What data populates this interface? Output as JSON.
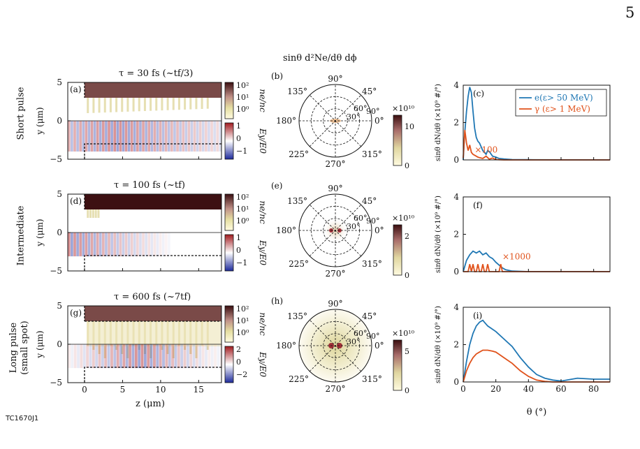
{
  "page_number": "5",
  "footer_code": "TC1670J1",
  "row_labels": [
    {
      "line1": "Short pulse",
      "line2": ""
    },
    {
      "line1": "Intermediate",
      "line2": ""
    },
    {
      "line1": "Long pulse",
      "line2": "(small spot)"
    }
  ],
  "left_column": {
    "titles": [
      "τ = 30 fs (~tf/3)",
      "τ = 100 fs (~tf)",
      "τ = 600 fs (~7tf)"
    ],
    "panel_letters": [
      "(a)",
      "(d)",
      "(g)"
    ],
    "ylabel": "y (μm)",
    "xlabel": "z (μm)",
    "y_ticks": [
      "5",
      "0",
      "−5"
    ],
    "x_ticks": [
      "0",
      "5",
      "10",
      "15"
    ],
    "density_label": "ne/nc",
    "field_label": "Ey/E0",
    "density_ticks": [
      "10²",
      "10¹",
      "10⁰"
    ],
    "field_ticks_small": [
      "1",
      "0",
      "−1"
    ],
    "field_ticks_large": [
      "2",
      "0",
      "−2"
    ]
  },
  "polar_column": {
    "header": "sinθ d²Ne/dθ dϕ",
    "panel_letters": [
      "(b)",
      "(e)",
      "(h)"
    ],
    "angle_labels": [
      "90°",
      "45°",
      "135°",
      "60°",
      "90°",
      "30°",
      "0°",
      "180°",
      "225°",
      "270°",
      "315°"
    ],
    "scale_label": "×10¹⁰",
    "colorbar_ticks": [
      [
        "10",
        "0"
      ],
      [
        "2",
        "0"
      ],
      [
        "5",
        "0"
      ]
    ]
  },
  "right_column": {
    "panel_letters": [
      "(c)",
      "(f)",
      "(i)"
    ],
    "ylabel": "sinθ dN/dθ (×10⁹ #/°)",
    "xlabel": "θ (°)",
    "y_ticks": [
      "4",
      "2",
      "0"
    ],
    "x_ticks": [
      "0",
      "20",
      "40",
      "60",
      "80"
    ],
    "legend": [
      "e(ε> 50 MeV)",
      "γ (ε> 1 MeV)"
    ],
    "multipliers": [
      "×100",
      "×1000",
      ""
    ],
    "colors": {
      "electron": "#1f77b4",
      "photon": "#e0521b"
    }
  },
  "chart_data": [
    {
      "type": "line",
      "panel": "(c)",
      "xlabel": "θ (°)",
      "ylabel": "sinθ dN/dθ (×10⁹ #/°)",
      "xlim": [
        0,
        90
      ],
      "ylim": [
        0,
        4
      ],
      "series": [
        {
          "name": "e(ε> 50 MeV)",
          "x": [
            0,
            1,
            2,
            3,
            4,
            5,
            6,
            7,
            8,
            9,
            10,
            12,
            14,
            15,
            16,
            18,
            20,
            22,
            25,
            30,
            40,
            90
          ],
          "y": [
            0,
            1.5,
            2.6,
            3.4,
            3.9,
            3.6,
            2.6,
            1.7,
            1.2,
            1.0,
            0.9,
            0.5,
            0.3,
            0.5,
            0.45,
            0.2,
            0.15,
            0.08,
            0.05,
            0.02,
            0.01,
            0.0
          ]
        },
        {
          "name": "γ (ε> 1 MeV)",
          "x": [
            0,
            1,
            2,
            3,
            4,
            5,
            6,
            7,
            8,
            9,
            10,
            12,
            14,
            16,
            18,
            20,
            22,
            25,
            30,
            90
          ],
          "y": [
            0.1,
            1.6,
            0.9,
            0.5,
            0.8,
            0.4,
            0.3,
            0.25,
            0.2,
            0.15,
            0.12,
            0.08,
            0.2,
            0.04,
            0.1,
            0.02,
            0.01,
            0.0,
            0.0,
            0.0
          ]
        }
      ]
    },
    {
      "type": "line",
      "panel": "(f)",
      "xlabel": "θ (°)",
      "ylabel": "sinθ dN/dθ (×10⁹ #/°)",
      "xlim": [
        0,
        90
      ],
      "ylim": [
        0,
        4
      ],
      "series": [
        {
          "name": "e(ε> 50 MeV)",
          "x": [
            0,
            2,
            4,
            6,
            8,
            10,
            12,
            14,
            16,
            18,
            20,
            22,
            24,
            26,
            30,
            40,
            90
          ],
          "y": [
            0,
            0.6,
            0.9,
            1.1,
            1.0,
            1.1,
            0.9,
            1.0,
            0.8,
            0.7,
            0.5,
            0.35,
            0.2,
            0.1,
            0.03,
            0.0,
            0.0
          ]
        },
        {
          "name": "γ (ε> 1 MeV)",
          "x": [
            0,
            3,
            4,
            5,
            6,
            7,
            8,
            9,
            10,
            11,
            12,
            13,
            14,
            15,
            16,
            17,
            18,
            22,
            23,
            24,
            25,
            90
          ],
          "y": [
            0,
            0,
            0.4,
            0,
            0.4,
            0,
            0,
            0.4,
            0,
            0,
            0.4,
            0,
            0,
            0.4,
            0,
            0,
            0,
            0,
            0.4,
            0,
            0,
            0
          ]
        }
      ]
    },
    {
      "type": "line",
      "panel": "(i)",
      "xlabel": "θ (°)",
      "ylabel": "sinθ dN/dθ (×10⁹ #/°)",
      "xlim": [
        0,
        90
      ],
      "ylim": [
        0,
        4
      ],
      "series": [
        {
          "name": "e(ε> 50 MeV)",
          "x": [
            0,
            2,
            4,
            6,
            8,
            10,
            12,
            13,
            15,
            20,
            25,
            30,
            35,
            40,
            45,
            50,
            55,
            60,
            70,
            80,
            90
          ],
          "y": [
            0,
            1.1,
            2.0,
            2.6,
            3.0,
            3.2,
            3.3,
            3.2,
            3.0,
            2.7,
            2.3,
            1.9,
            1.3,
            0.8,
            0.4,
            0.2,
            0.1,
            0.05,
            0.2,
            0.15,
            0.15
          ]
        },
        {
          "name": "γ (ε> 1 MeV)",
          "x": [
            0,
            2,
            4,
            6,
            8,
            10,
            12,
            15,
            18,
            20,
            25,
            30,
            35,
            40,
            45,
            50,
            55,
            60,
            70,
            90
          ],
          "y": [
            0,
            0.6,
            1.0,
            1.3,
            1.5,
            1.6,
            1.7,
            1.7,
            1.65,
            1.6,
            1.3,
            1.0,
            0.6,
            0.3,
            0.1,
            0.03,
            0.0,
            0.0,
            0.0,
            0.0
          ]
        }
      ]
    }
  ]
}
